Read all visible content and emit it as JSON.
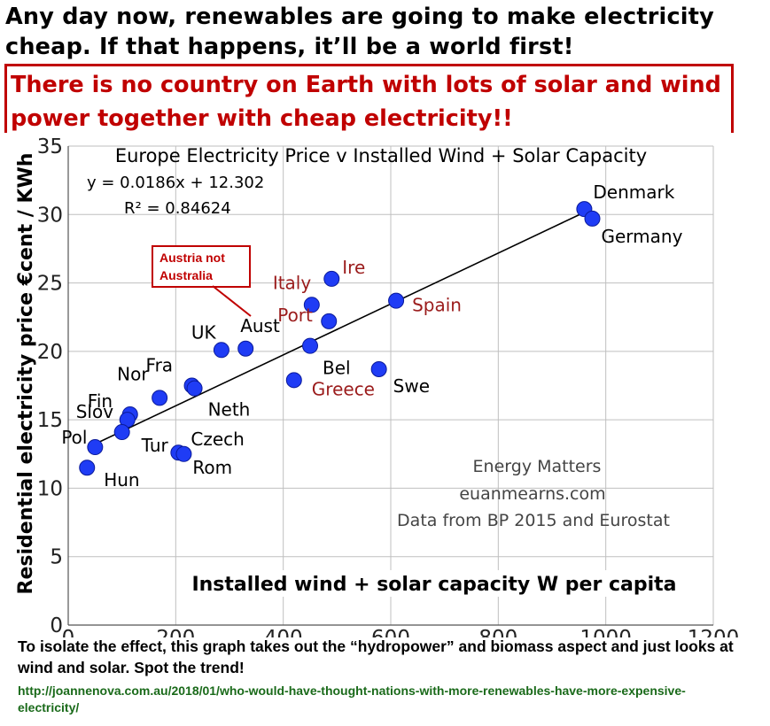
{
  "headline": "Any day now, renewables are going to make electricity cheap. If that happens, it’ll be a world first!",
  "callout": "There is no country on Earth with lots of solar and wind power together with cheap electricity!!",
  "caption": "To isolate the effect, this graph takes out the “hydropower” and biomass aspect and just looks at wind and solar. Spot the trend!",
  "link": "http://joannenova.com.au/2018/01/who-would-have-thought-nations-with-more-renewables-have-more-expensive-electricity/",
  "chart_data": {
    "type": "scatter",
    "title": "Europe Electricity Price v Installed Wind + Solar Capacity",
    "xlabel": "Installed wind + solar capacity W per capita",
    "ylabel": "Residential electricity price €cent / KWh",
    "xlim": [
      0,
      1200
    ],
    "ylim": [
      0,
      35
    ],
    "xticks": [
      0,
      200,
      400,
      600,
      800,
      1000,
      1200
    ],
    "yticks": [
      0,
      5,
      10,
      15,
      20,
      25,
      30,
      35
    ],
    "grid": true,
    "equation": "y = 0.0186x + 12.302",
    "r2": "R² = 0.84624",
    "trendline": {
      "slope": 0.0186,
      "intercept": 12.302,
      "x_range": [
        45,
        960
      ]
    },
    "point_color": "#1f3cf5",
    "points": [
      {
        "label": "Denmark",
        "x": 960,
        "y": 30.4
      },
      {
        "label": "Germany",
        "x": 975,
        "y": 29.7
      },
      {
        "label": "Ire",
        "x": 490,
        "y": 25.3
      },
      {
        "label": "Italy",
        "x": 453,
        "y": 23.4
      },
      {
        "label": "Port",
        "x": 485,
        "y": 22.2
      },
      {
        "label": "Spain",
        "x": 610,
        "y": 23.7
      },
      {
        "label": "Bel",
        "x": 450,
        "y": 20.4
      },
      {
        "label": "Greece",
        "x": 420,
        "y": 17.9
      },
      {
        "label": "Swe",
        "x": 578,
        "y": 18.7
      },
      {
        "label": "UK",
        "x": 285,
        "y": 20.1
      },
      {
        "label": "Aust",
        "x": 330,
        "y": 20.2
      },
      {
        "label": "Fra",
        "x": 230,
        "y": 17.5
      },
      {
        "label": "Neth",
        "x": 235,
        "y": 17.3
      },
      {
        "label": "Nor",
        "x": 170,
        "y": 16.6
      },
      {
        "label": "Fin",
        "x": 115,
        "y": 15.4
      },
      {
        "label": "Slov",
        "x": 110,
        "y": 15.0
      },
      {
        "label": "Tur",
        "x": 100,
        "y": 14.1
      },
      {
        "label": "Pol",
        "x": 50,
        "y": 13.0
      },
      {
        "label": "Hun",
        "x": 35,
        "y": 11.5
      },
      {
        "label": "Czech",
        "x": 205,
        "y": 12.6
      },
      {
        "label": "Rom",
        "x": 215,
        "y": 12.5
      }
    ],
    "annotation": "Austria not Australia",
    "credits": [
      "Energy Matters",
      "euanmearns.com",
      "Data from BP 2015 and Eurostat"
    ]
  },
  "colors": {
    "red": "#c00000",
    "label_red": "#9b1c1c",
    "grid": "#bfbfbf",
    "point": "#1f3cf5"
  }
}
